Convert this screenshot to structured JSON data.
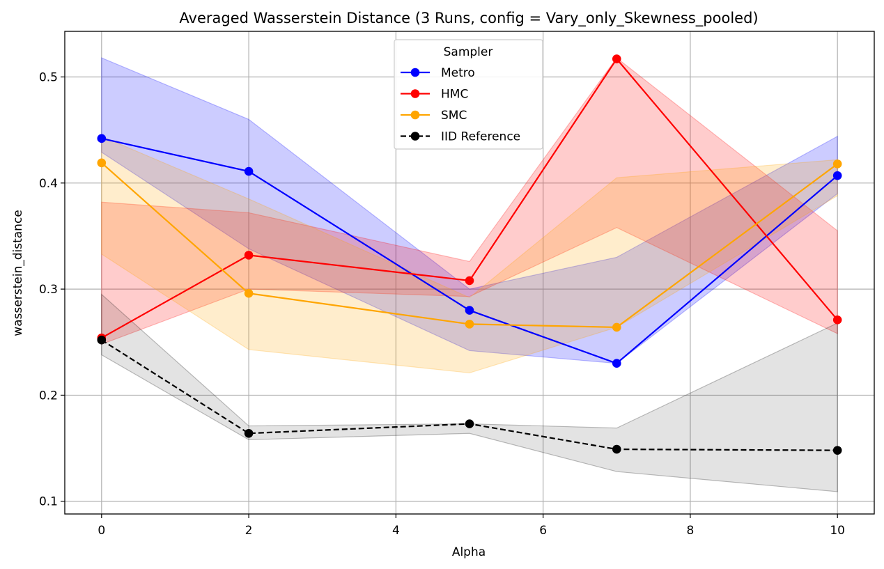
{
  "chart_data": {
    "type": "line",
    "title": "Averaged Wasserstein Distance (3 Runs, config = Vary_only_Skewness_pooled)",
    "xlabel": "Alpha",
    "ylabel": "wasserstein_distance",
    "x": [
      0,
      2,
      5,
      7,
      10
    ],
    "xlim": [
      -0.5,
      10.5
    ],
    "ylim": [
      0.088,
      0.543
    ],
    "xticks": [
      0,
      2,
      4,
      6,
      8,
      10
    ],
    "yticks": [
      0.1,
      0.2,
      0.3,
      0.4,
      0.5
    ],
    "grid": true,
    "legend": {
      "title": "Sampler",
      "placement": "upper center"
    },
    "series": [
      {
        "name": "Metro",
        "color": "#0000ff",
        "linestyle": "solid",
        "values": [
          0.442,
          0.411,
          0.28,
          0.23,
          0.407
        ],
        "band_lower": [
          0.429,
          0.338,
          0.242,
          0.23,
          0.39
        ],
        "band_upper": [
          0.518,
          0.46,
          0.3,
          0.33,
          0.444
        ]
      },
      {
        "name": "HMC",
        "color": "#ff0000",
        "linestyle": "solid",
        "values": [
          0.254,
          0.332,
          0.308,
          0.517,
          0.271
        ],
        "band_lower": [
          0.248,
          0.3,
          0.293,
          0.358,
          0.258
        ],
        "band_upper": [
          0.382,
          0.372,
          0.326,
          0.518,
          0.355
        ]
      },
      {
        "name": "SMC",
        "color": "#ffa500",
        "linestyle": "solid",
        "values": [
          0.419,
          0.296,
          0.267,
          0.264,
          0.418
        ],
        "band_lower": [
          0.333,
          0.243,
          0.221,
          0.264,
          0.388
        ],
        "band_upper": [
          0.444,
          0.385,
          0.292,
          0.405,
          0.422
        ]
      },
      {
        "name": "IID Reference",
        "color": "#000000",
        "linestyle": "dashed",
        "values": [
          0.252,
          0.164,
          0.173,
          0.149,
          0.148
        ],
        "band_lower": [
          0.238,
          0.158,
          0.164,
          0.128,
          0.109
        ],
        "band_upper": [
          0.295,
          0.171,
          0.173,
          0.169,
          0.268
        ]
      }
    ]
  }
}
